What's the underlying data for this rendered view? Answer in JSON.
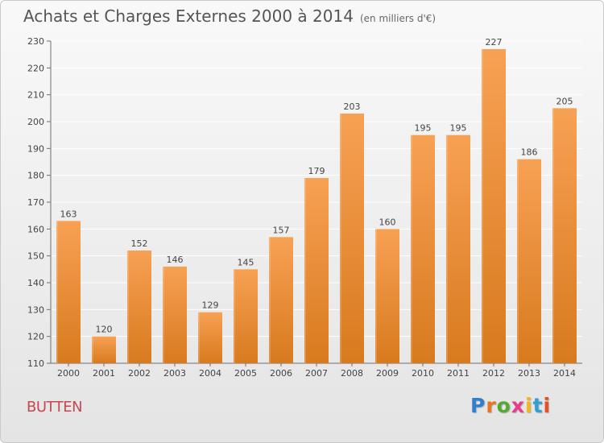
{
  "header": {
    "title": "Achats et Charges Externes 2000 à 2014",
    "subtitle": "(en milliers d'€)"
  },
  "footer": {
    "commune": "BUTTEN",
    "logo": "Proxiti"
  },
  "colors": {
    "bar_light": "#f7a154",
    "bar_dark": "#d87a1e",
    "grid": "#ffffff",
    "axis": "#6f6f6f",
    "text": "#444444"
  },
  "chart_data": {
    "type": "bar",
    "title": "Achats et Charges Externes 2000 à 2014",
    "subtitle": "(en milliers d'€)",
    "xlabel": "",
    "ylabel": "",
    "categories": [
      "2000",
      "2001",
      "2002",
      "2003",
      "2004",
      "2005",
      "2006",
      "2007",
      "2008",
      "2009",
      "2010",
      "2011",
      "2012",
      "2013",
      "2014"
    ],
    "values": [
      163,
      120,
      152,
      146,
      129,
      145,
      157,
      179,
      203,
      160,
      195,
      195,
      227,
      186,
      205
    ],
    "ylim": [
      110,
      230
    ],
    "yticks": [
      110,
      120,
      130,
      140,
      150,
      160,
      170,
      180,
      190,
      200,
      210,
      220,
      230
    ],
    "grid": true,
    "data_labels": true
  }
}
